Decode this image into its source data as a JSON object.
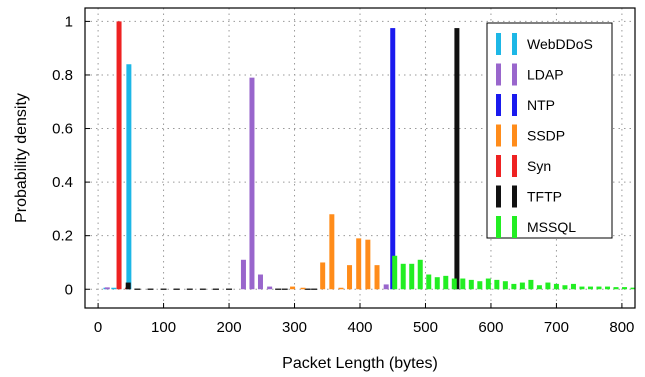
{
  "chart_data": {
    "type": "bar",
    "xlabel": "Packet Length (bytes)",
    "ylabel": "Probability density",
    "xlim": [
      -20,
      820
    ],
    "ylim": [
      -0.07,
      1.05
    ],
    "xticks": [
      0,
      100,
      200,
      300,
      400,
      500,
      600,
      700,
      800
    ],
    "xtick_labels": [
      "0",
      "100",
      "200",
      "300",
      "400",
      "500",
      "600",
      "700",
      "800"
    ],
    "yticks": [
      0,
      0.2,
      0.4,
      0.6,
      0.8,
      1
    ],
    "ytick_labels": [
      "0",
      "0.2",
      "0.4",
      "0.6",
      "0.8",
      "1"
    ],
    "grid": true,
    "legend_position": "top-right",
    "series": [
      {
        "name": "Syn",
        "color": "#ee2222",
        "bars": [
          {
            "x": 32,
            "y": 1.0
          },
          {
            "x": 45,
            "y": 0.006
          }
        ]
      },
      {
        "name": "WebDDoS",
        "color": "#1db7e6",
        "bars": [
          {
            "x": 47,
            "y": 0.84
          },
          {
            "x": 12,
            "y": 0.004
          },
          {
            "x": 24,
            "y": 0.004
          }
        ]
      },
      {
        "name": "LDAP",
        "color": "#9966cc",
        "bars": [
          {
            "x": 14,
            "y": 0.007
          },
          {
            "x": 222,
            "y": 0.11
          },
          {
            "x": 235,
            "y": 0.79
          },
          {
            "x": 248,
            "y": 0.055
          },
          {
            "x": 262,
            "y": 0.01
          },
          {
            "x": 440,
            "y": 0.018
          }
        ]
      },
      {
        "name": "SSDP",
        "color": "#ff8c1a",
        "bars": [
          {
            "x": 297,
            "y": 0.01
          },
          {
            "x": 313,
            "y": 0.005
          },
          {
            "x": 343,
            "y": 0.1
          },
          {
            "x": 357,
            "y": 0.28
          },
          {
            "x": 371,
            "y": 0.005
          },
          {
            "x": 384,
            "y": 0.09
          },
          {
            "x": 398,
            "y": 0.19
          },
          {
            "x": 412,
            "y": 0.185
          },
          {
            "x": 426,
            "y": 0.09
          }
        ]
      },
      {
        "name": "NTP",
        "color": "#1a1aee",
        "bars": [
          {
            "x": 450,
            "y": 0.975
          }
        ]
      },
      {
        "name": "TFTP",
        "color": "#111111",
        "bars": [
          {
            "x": 46,
            "y": 0.025
          },
          {
            "x": 548,
            "y": 0.975
          }
        ]
      },
      {
        "name": "MSSQL",
        "color": "#22ee22",
        "bars": [
          {
            "x": 453,
            "y": 0.125
          },
          {
            "x": 466,
            "y": 0.095
          },
          {
            "x": 479,
            "y": 0.095
          },
          {
            "x": 492,
            "y": 0.11
          },
          {
            "x": 505,
            "y": 0.055
          },
          {
            "x": 518,
            "y": 0.045
          },
          {
            "x": 531,
            "y": 0.05
          },
          {
            "x": 544,
            "y": 0.04
          },
          {
            "x": 557,
            "y": 0.04
          },
          {
            "x": 570,
            "y": 0.035
          },
          {
            "x": 583,
            "y": 0.03
          },
          {
            "x": 596,
            "y": 0.04
          },
          {
            "x": 609,
            "y": 0.035
          },
          {
            "x": 622,
            "y": 0.03
          },
          {
            "x": 635,
            "y": 0.02
          },
          {
            "x": 648,
            "y": 0.025
          },
          {
            "x": 661,
            "y": 0.035
          },
          {
            "x": 674,
            "y": 0.015
          },
          {
            "x": 687,
            "y": 0.025
          },
          {
            "x": 700,
            "y": 0.02
          },
          {
            "x": 713,
            "y": 0.015
          },
          {
            "x": 726,
            "y": 0.02
          },
          {
            "x": 739,
            "y": 0.01
          },
          {
            "x": 752,
            "y": 0.01
          },
          {
            "x": 765,
            "y": 0.01
          },
          {
            "x": 778,
            "y": 0.01
          },
          {
            "x": 791,
            "y": 0.008
          },
          {
            "x": 804,
            "y": 0.008
          },
          {
            "x": 817,
            "y": 0.006
          }
        ]
      }
    ],
    "legend_order": [
      "WebDDoS",
      "LDAP",
      "NTP",
      "SSDP",
      "Syn",
      "TFTP",
      "MSSQL"
    ],
    "baseline_noise": [
      {
        "x": 60,
        "y": 0.003
      },
      {
        "x": 80,
        "y": 0.002
      },
      {
        "x": 100,
        "y": 0.003
      },
      {
        "x": 120,
        "y": 0.002
      },
      {
        "x": 140,
        "y": 0.002
      },
      {
        "x": 160,
        "y": 0.003
      },
      {
        "x": 180,
        "y": 0.002
      },
      {
        "x": 200,
        "y": 0.002
      },
      {
        "x": 275,
        "y": 0.002
      },
      {
        "x": 285,
        "y": 0.003
      },
      {
        "x": 320,
        "y": 0.002
      },
      {
        "x": 330,
        "y": 0.002
      }
    ]
  }
}
